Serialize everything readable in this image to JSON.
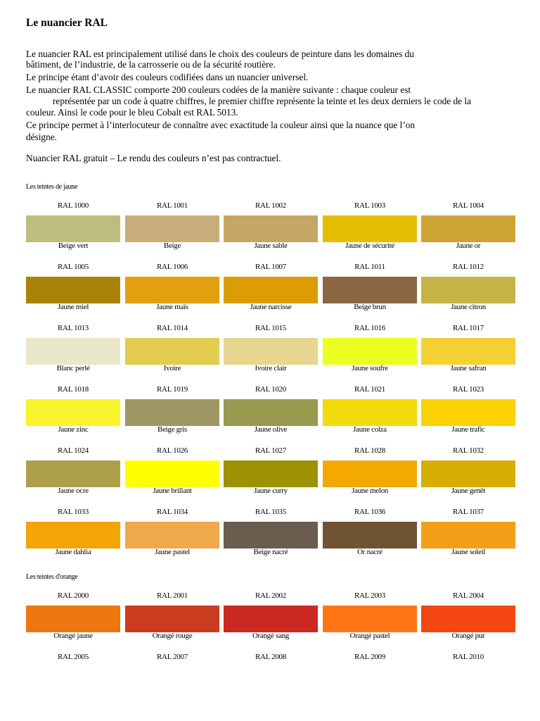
{
  "title": "Le nuancier RAL",
  "intro": [
    "Le nuancier RAL est principalement utilisé dans le choix des couleurs de peinture dans les domaines du",
    "bâtiment, de l’industrie, de la carrosserie ou de la sécurité routière.",
    "Le principe étant d’avoir des couleurs codifiées dans un nuancier universel.",
    "Le nuancier RAL CLASSIC comporte 200 couleurs codées de la manière suivante : chaque couleur est",
    "représentée par un code à quatre chiffres, le premier chiffre représente la teinte et les deux derniers le code de la",
    "couleur. Ainsi le code pour le bleu Cobalt est RAL 5013.",
    "Ce principe permet à l’interlocuteur de connaître avec exactitude la couleur ainsi que la nuance que l’on",
    "désigne."
  ],
  "note": "Nuancier RAL gratuit – Le rendu des couleurs n’est pas contractuel.",
  "sections": [
    {
      "title": "Les teintes de jaune",
      "rows": [
        [
          {
            "code": "RAL 1000",
            "name": "Beige vert",
            "color": "#bebd7f"
          },
          {
            "code": "RAL 1001",
            "name": "Beige",
            "color": "#c8ad7b"
          },
          {
            "code": "RAL 1002",
            "name": "Jaune sable",
            "color": "#c6a664"
          },
          {
            "code": "RAL 1003",
            "name": "Jaune de sécurité",
            "color": "#e5be01"
          },
          {
            "code": "RAL 1004",
            "name": "Jaune or",
            "color": "#cda434"
          }
        ],
        [
          {
            "code": "RAL 1005",
            "name": "Jaune miel",
            "color": "#a98307"
          },
          {
            "code": "RAL 1006",
            "name": "Jaune maïs",
            "color": "#e2a00e"
          },
          {
            "code": "RAL 1007",
            "name": "Jaune narcisse",
            "color": "#dc9d00"
          },
          {
            "code": "RAL 1011",
            "name": "Beige brun",
            "color": "#8a6642"
          },
          {
            "code": "RAL 1012",
            "name": "Jaune citron",
            "color": "#c7b446"
          }
        ],
        [
          {
            "code": "RAL 1013",
            "name": "Blanc perlé",
            "color": "#eae6ca"
          },
          {
            "code": "RAL 1014",
            "name": "Ivoire",
            "color": "#e1cc4f"
          },
          {
            "code": "RAL 1015",
            "name": "Ivoire clair",
            "color": "#e6d690"
          },
          {
            "code": "RAL 1016",
            "name": "Jaune soufre",
            "color": "#edff21"
          },
          {
            "code": "RAL 1017",
            "name": "Jaune safran",
            "color": "#f5d033"
          }
        ],
        [
          {
            "code": "RAL 1018",
            "name": "Jaune zinc",
            "color": "#f8f32b"
          },
          {
            "code": "RAL 1019",
            "name": "Beige gris",
            "color": "#9e9764"
          },
          {
            "code": "RAL 1020",
            "name": "Jaune olive",
            "color": "#999950"
          },
          {
            "code": "RAL 1021",
            "name": "Jaune colza",
            "color": "#f3da0b"
          },
          {
            "code": "RAL 1023",
            "name": "Jaune trafic",
            "color": "#fad201"
          }
        ],
        [
          {
            "code": "RAL 1024",
            "name": "Jaune ocre",
            "color": "#aea04b"
          },
          {
            "code": "RAL 1026",
            "name": "Jaune brillant",
            "color": "#ffff00"
          },
          {
            "code": "RAL 1027",
            "name": "Jaune curry",
            "color": "#9d9101"
          },
          {
            "code": "RAL 1028",
            "name": "Jaune melon",
            "color": "#f4a900"
          },
          {
            "code": "RAL 1032",
            "name": "Jaune genêt",
            "color": "#d6ae01"
          }
        ],
        [
          {
            "code": "RAL 1033",
            "name": "Jaune dahlia",
            "color": "#f3a505"
          },
          {
            "code": "RAL 1034",
            "name": "Jaune pastel",
            "color": "#efa94a"
          },
          {
            "code": "RAL 1035",
            "name": "Beige nacré",
            "color": "#6a5d4d"
          },
          {
            "code": "RAL 1036",
            "name": "Or nacré",
            "color": "#705335"
          },
          {
            "code": "RAL 1037",
            "name": "Jaune soleil",
            "color": "#f39f18"
          }
        ]
      ]
    },
    {
      "title": "Les teintes d'orange",
      "rows": [
        [
          {
            "code": "RAL 2000",
            "name": "Orangé jaune",
            "color": "#ed760e"
          },
          {
            "code": "RAL 2001",
            "name": "Orangé rouge",
            "color": "#c93c20"
          },
          {
            "code": "RAL 2002",
            "name": "Orangé sang",
            "color": "#cb2821"
          },
          {
            "code": "RAL 2003",
            "name": "Orangé pastel",
            "color": "#ff7514"
          },
          {
            "code": "RAL 2004",
            "name": "Orangé pur",
            "color": "#f44611"
          }
        ],
        [
          {
            "code": "RAL 2005"
          },
          {
            "code": "RAL 2007"
          },
          {
            "code": "RAL 2008"
          },
          {
            "code": "RAL 2009"
          },
          {
            "code": "RAL 2010"
          }
        ]
      ]
    }
  ]
}
